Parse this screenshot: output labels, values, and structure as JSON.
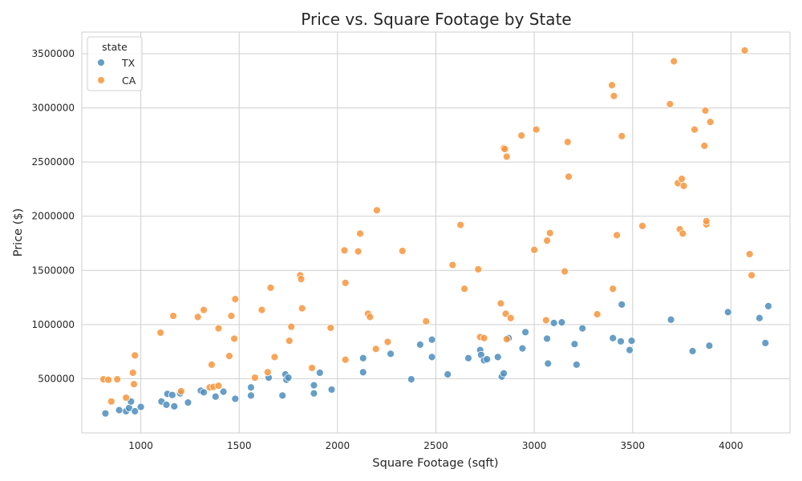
{
  "chart_data": {
    "type": "scatter",
    "title": "Price vs. Square Footage by State",
    "xlabel": "Square Footage (sqft)",
    "ylabel": "Price ($)",
    "xlim": [
      700,
      4300
    ],
    "ylim": [
      0,
      3700000
    ],
    "xticks": [
      1000,
      1500,
      2000,
      2500,
      3000,
      3500,
      4000
    ],
    "yticks": [
      500000,
      1000000,
      1500000,
      2000000,
      2500000,
      3000000,
      3500000
    ],
    "grid": true,
    "legend": {
      "title": "state",
      "position": "top-left"
    },
    "colors": {
      "TX": "#4c8dbc",
      "CA": "#f7953c"
    },
    "series": [
      {
        "name": "TX",
        "points": [
          [
            820,
            180000
          ],
          [
            890,
            210000
          ],
          [
            925,
            200000
          ],
          [
            940,
            230000
          ],
          [
            950,
            290000
          ],
          [
            970,
            200000
          ],
          [
            1000,
            240000
          ],
          [
            1105,
            290000
          ],
          [
            1135,
            360000
          ],
          [
            1130,
            260000
          ],
          [
            1160,
            350000
          ],
          [
            1170,
            245000
          ],
          [
            1200,
            365000
          ],
          [
            1240,
            280000
          ],
          [
            1305,
            390000
          ],
          [
            1320,
            375000
          ],
          [
            1380,
            335000
          ],
          [
            1420,
            380000
          ],
          [
            1480,
            315000
          ],
          [
            1560,
            345000
          ],
          [
            1560,
            420000
          ],
          [
            1650,
            510000
          ],
          [
            1720,
            345000
          ],
          [
            1735,
            540000
          ],
          [
            1740,
            490000
          ],
          [
            1750,
            510000
          ],
          [
            1880,
            365000
          ],
          [
            1880,
            440000
          ],
          [
            1910,
            555000
          ],
          [
            1970,
            400000
          ],
          [
            2130,
            690000
          ],
          [
            2130,
            560000
          ],
          [
            2270,
            730000
          ],
          [
            2375,
            495000
          ],
          [
            2420,
            815000
          ],
          [
            2480,
            860000
          ],
          [
            2480,
            700000
          ],
          [
            2560,
            540000
          ],
          [
            2665,
            690000
          ],
          [
            2725,
            765000
          ],
          [
            2730,
            720000
          ],
          [
            2745,
            670000
          ],
          [
            2760,
            680000
          ],
          [
            2815,
            700000
          ],
          [
            2835,
            520000
          ],
          [
            2845,
            550000
          ],
          [
            2870,
            875000
          ],
          [
            2940,
            780000
          ],
          [
            2955,
            930000
          ],
          [
            3065,
            870000
          ],
          [
            3070,
            640000
          ],
          [
            3100,
            1015000
          ],
          [
            3140,
            1020000
          ],
          [
            3205,
            820000
          ],
          [
            3215,
            630000
          ],
          [
            3245,
            965000
          ],
          [
            3400,
            875000
          ],
          [
            3440,
            845000
          ],
          [
            3445,
            1185000
          ],
          [
            3485,
            765000
          ],
          [
            3495,
            850000
          ],
          [
            3695,
            1045000
          ],
          [
            3805,
            755000
          ],
          [
            3890,
            805000
          ],
          [
            3985,
            1115000
          ],
          [
            4145,
            1060000
          ],
          [
            4175,
            830000
          ],
          [
            4190,
            1170000
          ]
        ]
      },
      {
        "name": "CA",
        "points": [
          [
            810,
            495000
          ],
          [
            835,
            490000
          ],
          [
            850,
            290000
          ],
          [
            880,
            495000
          ],
          [
            925,
            325000
          ],
          [
            960,
            555000
          ],
          [
            965,
            450000
          ],
          [
            970,
            715000
          ],
          [
            1100,
            925000
          ],
          [
            1165,
            1080000
          ],
          [
            1205,
            385000
          ],
          [
            1290,
            1070000
          ],
          [
            1320,
            1135000
          ],
          [
            1350,
            420000
          ],
          [
            1360,
            630000
          ],
          [
            1370,
            425000
          ],
          [
            1395,
            965000
          ],
          [
            1395,
            435000
          ],
          [
            1450,
            710000
          ],
          [
            1460,
            1080000
          ],
          [
            1480,
            1235000
          ],
          [
            1475,
            870000
          ],
          [
            1580,
            510000
          ],
          [
            1615,
            1135000
          ],
          [
            1645,
            560000
          ],
          [
            1660,
            1340000
          ],
          [
            1680,
            700000
          ],
          [
            1755,
            850000
          ],
          [
            1765,
            980000
          ],
          [
            1810,
            1455000
          ],
          [
            1815,
            1420000
          ],
          [
            1820,
            1150000
          ],
          [
            1870,
            600000
          ],
          [
            1965,
            970000
          ],
          [
            2035,
            1685000
          ],
          [
            2040,
            1385000
          ],
          [
            2040,
            675000
          ],
          [
            2105,
            1675000
          ],
          [
            2115,
            1840000
          ],
          [
            2155,
            1100000
          ],
          [
            2165,
            1070000
          ],
          [
            2195,
            775000
          ],
          [
            2200,
            2055000
          ],
          [
            2255,
            840000
          ],
          [
            2330,
            1680000
          ],
          [
            2450,
            1030000
          ],
          [
            2585,
            1550000
          ],
          [
            2625,
            1920000
          ],
          [
            2645,
            1330000
          ],
          [
            2715,
            1510000
          ],
          [
            2725,
            885000
          ],
          [
            2745,
            875000
          ],
          [
            2830,
            1195000
          ],
          [
            2845,
            2630000
          ],
          [
            2850,
            2620000
          ],
          [
            2855,
            1100000
          ],
          [
            2860,
            865000
          ],
          [
            2860,
            2550000
          ],
          [
            2880,
            1060000
          ],
          [
            2935,
            2745000
          ],
          [
            3000,
            1690000
          ],
          [
            3010,
            2800000
          ],
          [
            3060,
            1040000
          ],
          [
            3065,
            1775000
          ],
          [
            3080,
            1845000
          ],
          [
            3155,
            1490000
          ],
          [
            3170,
            2685000
          ],
          [
            3175,
            2365000
          ],
          [
            3320,
            1095000
          ],
          [
            3395,
            3210000
          ],
          [
            3400,
            1330000
          ],
          [
            3405,
            3110000
          ],
          [
            3420,
            1825000
          ],
          [
            3445,
            2740000
          ],
          [
            3550,
            1910000
          ],
          [
            3690,
            3035000
          ],
          [
            3710,
            3430000
          ],
          [
            3730,
            2305000
          ],
          [
            3740,
            1880000
          ],
          [
            3750,
            2345000
          ],
          [
            3755,
            1840000
          ],
          [
            3760,
            2280000
          ],
          [
            3815,
            2800000
          ],
          [
            3865,
            2650000
          ],
          [
            3870,
            2975000
          ],
          [
            3875,
            1925000
          ],
          [
            3875,
            1955000
          ],
          [
            3895,
            2870000
          ],
          [
            4070,
            3530000
          ],
          [
            4095,
            1650000
          ],
          [
            4105,
            1455000
          ]
        ]
      }
    ]
  }
}
